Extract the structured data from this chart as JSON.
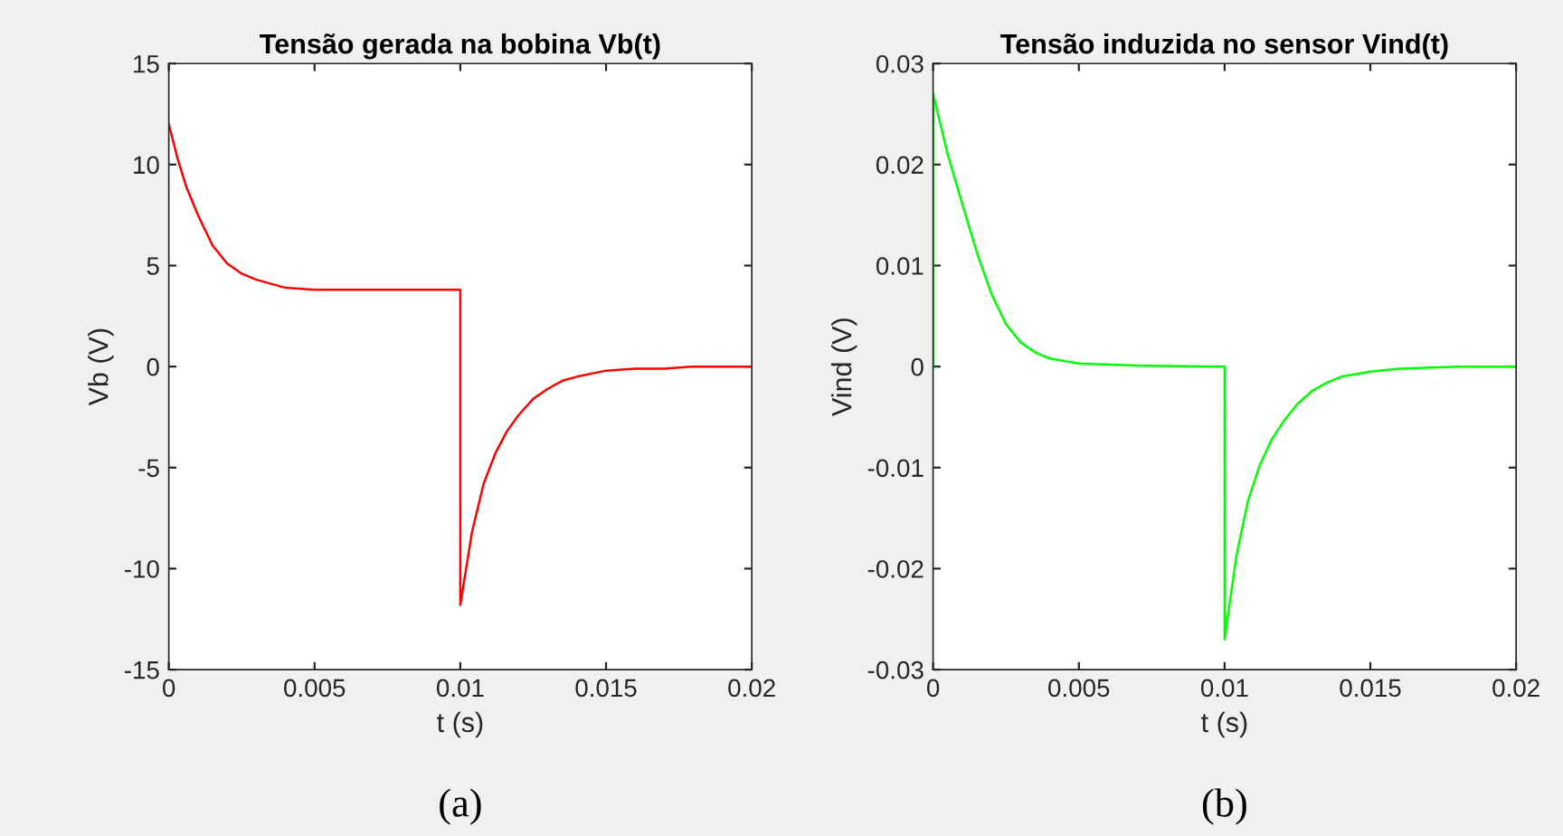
{
  "chart_data": [
    {
      "type": "line",
      "title": "Tensão gerada na bobina Vb(t)",
      "xlabel": "t (s)",
      "ylabel": "Vb (V)",
      "annotations": [
        "(a)"
      ],
      "x": [
        0,
        0.0003,
        0.0006,
        0.001,
        0.0015,
        0.002,
        0.0025,
        0.003,
        0.0035,
        0.004,
        0.005,
        0.006,
        0.008,
        0.01,
        0.01,
        0.0104,
        0.0108,
        0.0112,
        0.0116,
        0.012,
        0.0125,
        0.013,
        0.0135,
        0.014,
        0.015,
        0.016,
        0.017,
        0.018,
        0.02
      ],
      "series": [
        {
          "color": "#ff0000",
          "values": [
            12,
            10.3,
            8.9,
            7.5,
            6.0,
            5.1,
            4.6,
            4.3,
            4.1,
            3.9,
            3.8,
            3.8,
            3.8,
            3.8,
            -11.8,
            -8.2,
            -5.8,
            -4.3,
            -3.2,
            -2.4,
            -1.6,
            -1.1,
            -0.7,
            -0.5,
            -0.2,
            -0.1,
            -0.1,
            0,
            0
          ]
        }
      ],
      "xlim": [
        0,
        0.02
      ],
      "xticks": [
        0,
        0.005,
        0.01,
        0.015,
        0.02
      ],
      "ylim": [
        -15,
        15
      ],
      "yticks": [
        -15,
        -10,
        -5,
        0,
        5,
        10,
        15
      ]
    },
    {
      "type": "line",
      "title": "Tensão induzida no sensor Vind(t)",
      "xlabel": "t (s)",
      "ylabel": "Vind (V)",
      "annotations": [
        "(b)"
      ],
      "x": [
        0,
        0,
        0.0005,
        0.001,
        0.0015,
        0.002,
        0.0025,
        0.003,
        0.0035,
        0.004,
        0.005,
        0.007,
        0.01,
        0.01,
        0.0104,
        0.0108,
        0.0112,
        0.0116,
        0.012,
        0.0125,
        0.013,
        0.0135,
        0.014,
        0.015,
        0.016,
        0.018,
        0.02
      ],
      "series": [
        {
          "color": "#00ff00",
          "values": [
            0,
            0.027,
            0.021,
            0.0161,
            0.0113,
            0.0072,
            0.0042,
            0.0024,
            0.0014,
            0.0008,
            0.0003,
            0.0001,
            0,
            -0.027,
            -0.0188,
            -0.0133,
            -0.0098,
            -0.0073,
            -0.0055,
            -0.0037,
            -0.0024,
            -0.0016,
            -0.001,
            -0.0005,
            -0.0002,
            0,
            0
          ]
        }
      ],
      "xlim": [
        0,
        0.02
      ],
      "xticks": [
        0,
        0.005,
        0.01,
        0.015,
        0.02
      ],
      "ylim": [
        -0.03,
        0.03
      ],
      "yticks": [
        -0.03,
        -0.02,
        -0.01,
        0,
        0.01,
        0.02,
        0.03
      ]
    }
  ]
}
